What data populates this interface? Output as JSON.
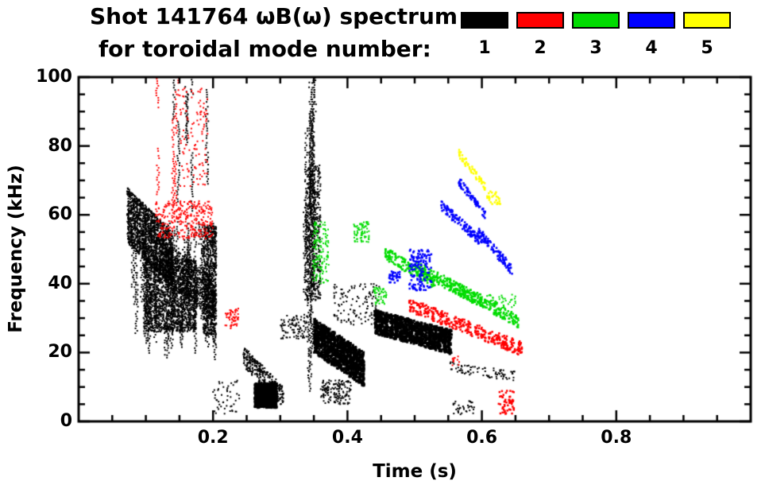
{
  "chart_data": {
    "type": "scatter",
    "title": "Shot 141764 ωB(ω) spectrum",
    "subtitle": "for toroidal mode number:",
    "xlabel": "Time (s)",
    "ylabel": "Frequency (kHz)",
    "xlim": [
      0,
      1.0
    ],
    "ylim": [
      0,
      100
    ],
    "grid": false,
    "xticks": {
      "major": [
        0.2,
        0.4,
        0.6,
        0.8
      ],
      "labels": [
        "0.2",
        "0.4",
        "0.6",
        "0.8"
      ],
      "minor_step": 0.05
    },
    "yticks": {
      "major": [
        0,
        20,
        40,
        60,
        80,
        100
      ],
      "labels": [
        "0",
        "20",
        "40",
        "60",
        "80",
        "100"
      ],
      "minor_step": 5
    },
    "legend": {
      "position": "top-right",
      "entries": [
        {
          "label": "1",
          "color": "#000000"
        },
        {
          "label": "2",
          "color": "#ff0000"
        },
        {
          "label": "3",
          "color": "#00dc00"
        },
        {
          "label": "4",
          "color": "#0000ff"
        },
        {
          "label": "5",
          "color": "#ffff00"
        }
      ]
    },
    "series": [
      {
        "name": "toroidal mode n=1",
        "color": "#000000",
        "clusters": [
          {
            "kind": "band",
            "t": [
              0.072,
              0.14
            ],
            "f": [
              60,
              47
            ],
            "jitter": 8,
            "n": 2200,
            "s": 2
          },
          {
            "kind": "blob",
            "t": [
              0.1,
              0.175
            ],
            "f": [
              26,
              47
            ],
            "n": 1500,
            "s": 2
          },
          {
            "kind": "vlines",
            "t": [
              0.078,
              0.205
            ],
            "f": [
              18,
              58
            ],
            "m": 60,
            "s": 2
          },
          {
            "kind": "band",
            "t": [
              0.13,
              0.2
            ],
            "f": [
              46,
              36
            ],
            "jitter": 6,
            "n": 700,
            "s": 2
          },
          {
            "kind": "vlines",
            "t": [
              0.14,
              0.2
            ],
            "f": [
              55,
              100
            ],
            "m": 7,
            "s": 2
          },
          {
            "kind": "blob",
            "t": [
              0.185,
              0.205
            ],
            "f": [
              25,
              57
            ],
            "n": 700,
            "s": 2
          },
          {
            "kind": "blob",
            "t": [
              0.2,
              0.24
            ],
            "f": [
              2,
              12
            ],
            "n": 50,
            "s": 2
          },
          {
            "kind": "band",
            "t": [
              0.245,
              0.305
            ],
            "f": [
              19,
              7
            ],
            "jitter": 3,
            "n": 450,
            "s": 2
          },
          {
            "kind": "blob",
            "t": [
              0.262,
              0.295
            ],
            "f": [
              4,
              11
            ],
            "n": 900,
            "s": 3
          },
          {
            "kind": "blob",
            "t": [
              0.3,
              0.34
            ],
            "f": [
              24,
              31
            ],
            "n": 90,
            "s": 2
          },
          {
            "kind": "vlines",
            "t": [
              0.336,
              0.358
            ],
            "f": [
              8,
              100
            ],
            "m": 12,
            "s": 2
          },
          {
            "kind": "blob",
            "t": [
              0.337,
              0.36
            ],
            "f": [
              35,
              75
            ],
            "n": 500,
            "s": 2
          },
          {
            "kind": "band",
            "t": [
              0.35,
              0.425
            ],
            "f": [
              25,
              15
            ],
            "jitter": 5,
            "n": 1500,
            "s": 3
          },
          {
            "kind": "blob",
            "t": [
              0.36,
              0.405
            ],
            "f": [
              5,
              12
            ],
            "n": 150,
            "s": 2
          },
          {
            "kind": "blob",
            "t": [
              0.38,
              0.45
            ],
            "f": [
              28,
              40
            ],
            "n": 120,
            "s": 2
          },
          {
            "kind": "band",
            "t": [
              0.44,
              0.555
            ],
            "f": [
              29,
              23
            ],
            "jitter": 3.5,
            "n": 1600,
            "s": 3
          },
          {
            "kind": "band",
            "t": [
              0.55,
              0.65
            ],
            "f": [
              16,
              13
            ],
            "jitter": 1.5,
            "n": 120,
            "s": 2
          },
          {
            "kind": "blob",
            "t": [
              0.555,
              0.59
            ],
            "f": [
              2,
              6
            ],
            "n": 35,
            "s": 2
          }
        ]
      },
      {
        "name": "toroidal mode n=2",
        "color": "#ff0000",
        "clusters": [
          {
            "kind": "vlines",
            "t": [
              0.112,
              0.15
            ],
            "f": [
              55,
              100
            ],
            "m": 6,
            "s": 2
          },
          {
            "kind": "blob",
            "t": [
              0.115,
              0.2
            ],
            "f": [
              53,
              64
            ],
            "n": 300,
            "s": 2
          },
          {
            "kind": "blob",
            "t": [
              0.15,
              0.192
            ],
            "f": [
              68,
              97
            ],
            "n": 110,
            "s": 2
          },
          {
            "kind": "blob",
            "t": [
              0.218,
              0.238
            ],
            "f": [
              27,
              33
            ],
            "n": 55,
            "s": 2
          },
          {
            "kind": "band",
            "t": [
              0.49,
              0.66
            ],
            "f": [
              34,
              21
            ],
            "jitter": 2,
            "n": 480,
            "s": 2.5
          },
          {
            "kind": "blob",
            "t": [
              0.625,
              0.648
            ],
            "f": [
              2,
              9
            ],
            "n": 55,
            "s": 2.5
          },
          {
            "kind": "blob",
            "t": [
              0.553,
              0.568
            ],
            "f": [
              16,
              19
            ],
            "n": 12,
            "s": 2
          }
        ]
      },
      {
        "name": "toroidal mode n=3",
        "color": "#00dc00",
        "clusters": [
          {
            "kind": "blob",
            "t": [
              0.348,
              0.372
            ],
            "f": [
              40,
              58
            ],
            "n": 140,
            "s": 2
          },
          {
            "kind": "blob",
            "t": [
              0.408,
              0.432
            ],
            "f": [
              52,
              58
            ],
            "n": 70,
            "s": 2
          },
          {
            "kind": "blob",
            "t": [
              0.438,
              0.458
            ],
            "f": [
              34,
              39
            ],
            "n": 45,
            "s": 2
          },
          {
            "kind": "band",
            "t": [
              0.455,
              0.53
            ],
            "f": [
              49,
              40
            ],
            "jitter": 1.8,
            "n": 220,
            "s": 2.5
          },
          {
            "kind": "band",
            "t": [
              0.5,
              0.6
            ],
            "f": [
              45,
              35
            ],
            "jitter": 1.8,
            "n": 240,
            "s": 2.5
          },
          {
            "kind": "band",
            "t": [
              0.55,
              0.655
            ],
            "f": [
              40,
              29
            ],
            "jitter": 1.8,
            "n": 280,
            "s": 2.5
          },
          {
            "kind": "blob",
            "t": [
              0.6,
              0.65
            ],
            "f": [
              33,
              37
            ],
            "n": 50,
            "s": 2
          }
        ]
      },
      {
        "name": "toroidal mode n=4",
        "color": "#0000ff",
        "clusters": [
          {
            "kind": "blob",
            "t": [
              0.462,
              0.478
            ],
            "f": [
              40,
              44
            ],
            "n": 35,
            "s": 2.5
          },
          {
            "kind": "blob",
            "t": [
              0.492,
              0.525
            ],
            "f": [
              38,
              50
            ],
            "n": 140,
            "s": 2.5
          },
          {
            "kind": "band",
            "t": [
              0.538,
              0.6
            ],
            "f": [
              63,
              52
            ],
            "jitter": 1.5,
            "n": 160,
            "s": 2.5
          },
          {
            "kind": "band",
            "t": [
              0.565,
              0.605
            ],
            "f": [
              70,
              60
            ],
            "jitter": 1.2,
            "n": 90,
            "s": 2.5
          },
          {
            "kind": "band",
            "t": [
              0.595,
              0.645
            ],
            "f": [
              55,
              44
            ],
            "jitter": 1.5,
            "n": 140,
            "s": 2.5
          }
        ]
      },
      {
        "name": "toroidal mode n=5",
        "color": "#ffff00",
        "clusters": [
          {
            "kind": "band",
            "t": [
              0.565,
              0.605
            ],
            "f": [
              78,
              68
            ],
            "jitter": 1.2,
            "n": 80,
            "s": 2.5
          },
          {
            "kind": "blob",
            "t": [
              0.608,
              0.628
            ],
            "f": [
              63,
              67
            ],
            "n": 28,
            "s": 2.5
          }
        ]
      }
    ]
  }
}
